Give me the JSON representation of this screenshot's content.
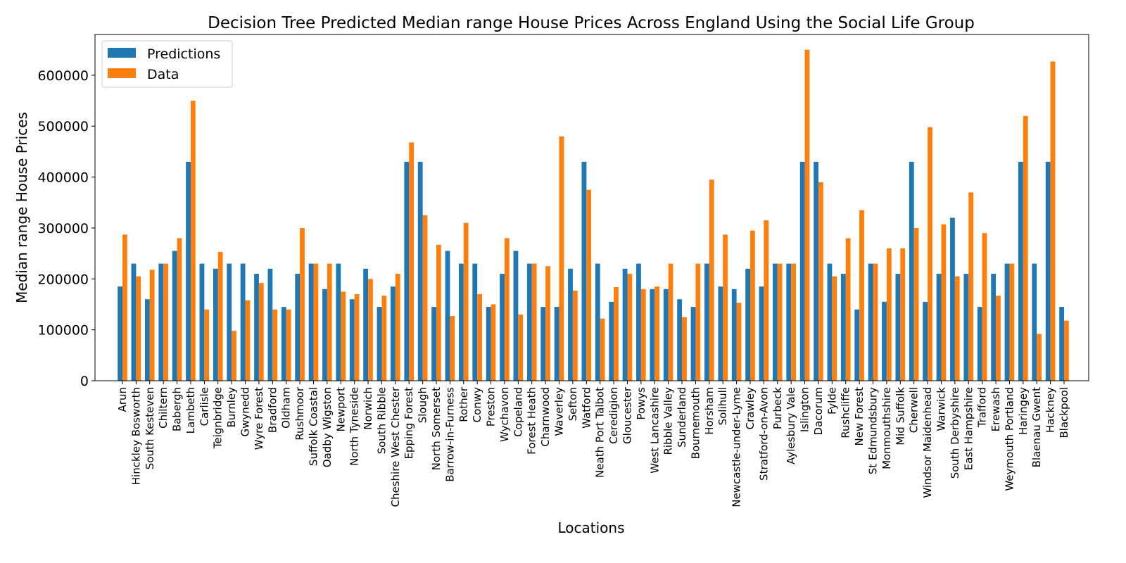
{
  "chart_data": {
    "type": "bar",
    "title": "Decision Tree Predicted Median range House Prices Across England Using the Social Life Group",
    "xlabel": "Locations",
    "ylabel": "Median range House Prices",
    "ylim": [
      0,
      680000
    ],
    "yticks": [
      0,
      100000,
      200000,
      300000,
      400000,
      500000,
      600000
    ],
    "grid": false,
    "legend_position": "top-left",
    "categories": [
      "Arun",
      "Hinckley Bosworth",
      "South Kesteven",
      "Chiltern",
      "Babergh",
      "Lambeth",
      "Carlisle",
      "Teignbridge",
      "Burnley",
      "Gwynedd",
      "Wyre Forest",
      "Bradford",
      "Oldham",
      "Rushmoor",
      "Suffolk Coastal",
      "Oadby Wigston",
      "Newport",
      "North Tyneside",
      "Norwich",
      "South Ribble",
      "Cheshire West Chester",
      "Epping Forest",
      "Slough",
      "North Somerset",
      "Barrow-in-Furness",
      "Rother",
      "Conwy",
      "Preston",
      "Wychavon",
      "Copeland",
      "Forest Heath",
      "Charnwood",
      "Waverley",
      "Sefton",
      "Watford",
      "Neath Port Talbot",
      "Ceredigion",
      "Gloucester",
      "Powys",
      "West Lancashire",
      "Ribble Valley",
      "Sunderland",
      "Bournemouth",
      "Horsham",
      "Solihull",
      "Newcastle-under-Lyme",
      "Crawley",
      "Stratford-on-Avon",
      "Purbeck",
      "Aylesbury Vale",
      "Islington",
      "Dacorum",
      "Fylde",
      "Rushcliffe",
      "New Forest",
      "St Edmundsbury",
      "Monmouthshire",
      "Mid Suffolk",
      "Cherwell",
      "Windsor Maidenhead",
      "Warwick",
      "South Derbyshire",
      "East Hampshire",
      "Trafford",
      "Erewash",
      "Weymouth Portland",
      "Haringey",
      "Blaenau Gwent",
      "Hackney",
      "Blackpool"
    ],
    "series": [
      {
        "name": "Predictions",
        "color": "#1f77b4",
        "values": [
          185000,
          230000,
          160000,
          230000,
          255000,
          430000,
          230000,
          220000,
          230000,
          230000,
          210000,
          220000,
          145000,
          210000,
          230000,
          180000,
          230000,
          160000,
          220000,
          145000,
          185000,
          430000,
          430000,
          145000,
          255000,
          230000,
          230000,
          145000,
          210000,
          255000,
          230000,
          145000,
          145000,
          220000,
          430000,
          230000,
          155000,
          220000,
          230000,
          180000,
          180000,
          160000,
          145000,
          230000,
          185000,
          180000,
          220000,
          185000,
          230000,
          230000,
          430000,
          430000,
          230000,
          210000,
          140000,
          230000,
          155000,
          210000,
          430000,
          155000,
          210000,
          320000,
          210000,
          145000,
          210000,
          230000,
          430000,
          230000,
          430000,
          145000
        ]
      },
      {
        "name": "Data",
        "color": "#ff7f0e",
        "values": [
          287000,
          205000,
          218000,
          230000,
          280000,
          550000,
          140000,
          253000,
          98000,
          158000,
          192000,
          140000,
          140000,
          300000,
          230000,
          230000,
          175000,
          170000,
          200000,
          167000,
          210000,
          468000,
          325000,
          267000,
          127000,
          310000,
          170000,
          150000,
          280000,
          130000,
          230000,
          225000,
          480000,
          177000,
          375000,
          122000,
          184000,
          210000,
          180000,
          185000,
          230000,
          125000,
          230000,
          395000,
          287000,
          153000,
          295000,
          315000,
          230000,
          230000,
          650000,
          390000,
          205000,
          280000,
          335000,
          230000,
          260000,
          260000,
          300000,
          498000,
          307000,
          205000,
          370000,
          290000,
          167000,
          230000,
          520000,
          92000,
          627000,
          118000
        ]
      }
    ]
  }
}
